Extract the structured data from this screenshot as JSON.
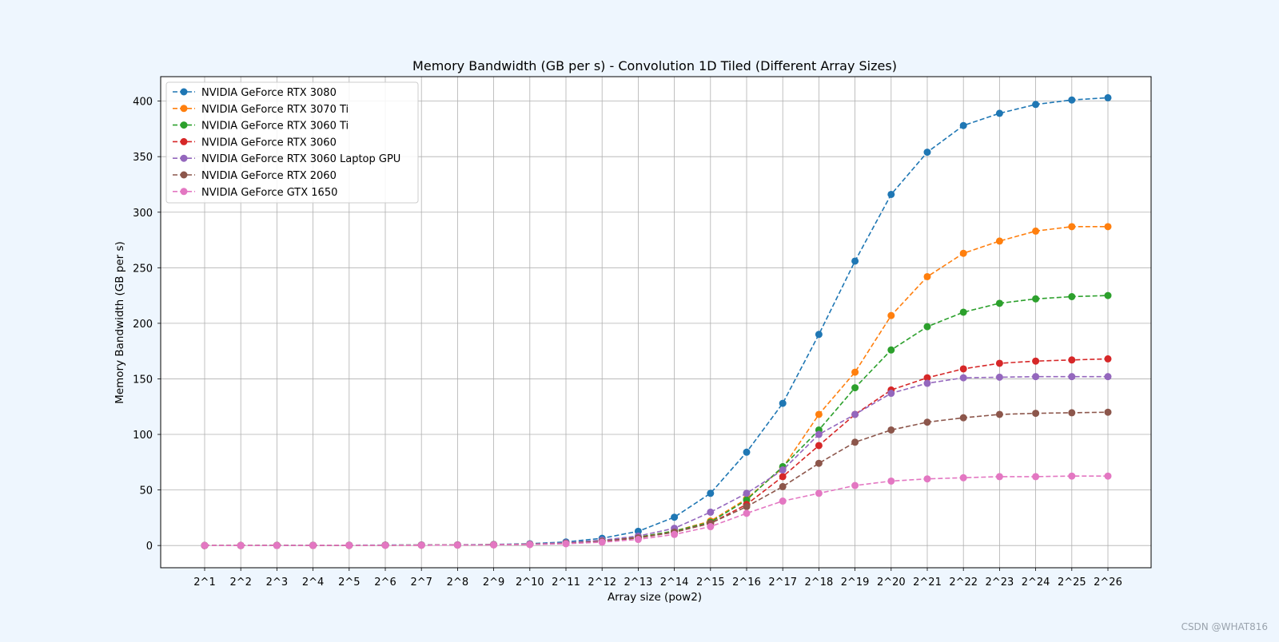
{
  "chart_data": {
    "type": "line",
    "title": "Memory Bandwidth (GB per s) - Convolution 1D Tiled (Different Array Sizes)",
    "xlabel": "Array size (pow2)",
    "ylabel": "Memory Bandwidth (GB per s)",
    "categories": [
      "2^1",
      "2^2",
      "2^3",
      "2^4",
      "2^5",
      "2^6",
      "2^7",
      "2^8",
      "2^9",
      "2^10",
      "2^11",
      "2^12",
      "2^13",
      "2^14",
      "2^15",
      "2^16",
      "2^17",
      "2^18",
      "2^19",
      "2^20",
      "2^21",
      "2^22",
      "2^23",
      "2^24",
      "2^25",
      "2^26"
    ],
    "ylim": [
      -20,
      422
    ],
    "yticks": [
      0,
      50,
      100,
      150,
      200,
      250,
      300,
      350,
      400
    ],
    "grid": true,
    "legend_position": "top-left",
    "line_style": "dashed",
    "marker": "circle",
    "series": [
      {
        "name": "NVIDIA GeForce RTX 3080",
        "color": "#1f77b4",
        "values": [
          0.0,
          0.0,
          0.1,
          0.2,
          0.3,
          0.4,
          0.5,
          0.6,
          0.9,
          1.6,
          3.2,
          6.5,
          12.8,
          25.5,
          47.0,
          84.0,
          128.0,
          190.0,
          256.0,
          316.0,
          354.0,
          378.0,
          389.0,
          397.0,
          401.0,
          403.0
        ]
      },
      {
        "name": "NVIDIA GeForce RTX 3070 Ti",
        "color": "#ff7f0e",
        "values": [
          0.0,
          0.0,
          0.1,
          0.2,
          0.2,
          0.3,
          0.4,
          0.5,
          0.8,
          1.2,
          2.2,
          4.2,
          7.5,
          13.0,
          22.0,
          42.0,
          70.0,
          118.0,
          156.0,
          207.0,
          242.0,
          263.0,
          274.0,
          283.0,
          287.0,
          287.0
        ]
      },
      {
        "name": "NVIDIA GeForce RTX 3060 Ti",
        "color": "#2ca02c",
        "values": [
          0.0,
          0.0,
          0.1,
          0.2,
          0.2,
          0.3,
          0.4,
          0.5,
          0.8,
          1.2,
          2.2,
          4.2,
          7.5,
          13.0,
          21.0,
          41.0,
          71.0,
          104.0,
          142.0,
          176.0,
          197.0,
          210.0,
          218.0,
          222.0,
          224.0,
          225.0
        ]
      },
      {
        "name": "NVIDIA GeForce RTX 3060",
        "color": "#d62728",
        "values": [
          0.0,
          0.0,
          0.1,
          0.1,
          0.2,
          0.3,
          0.3,
          0.5,
          0.7,
          1.1,
          2.0,
          4.0,
          7.0,
          12.0,
          20.0,
          37.0,
          62.0,
          90.0,
          118.0,
          140.0,
          151.0,
          159.0,
          164.0,
          166.0,
          167.0,
          168.0
        ]
      },
      {
        "name": "NVIDIA GeForce RTX 3060 Laptop GPU",
        "color": "#9467bd",
        "values": [
          0.0,
          0.0,
          0.1,
          0.2,
          0.2,
          0.3,
          0.4,
          0.5,
          0.8,
          1.3,
          2.5,
          4.8,
          8.5,
          15.5,
          30.0,
          47.0,
          68.0,
          100.0,
          118.0,
          137.0,
          146.0,
          151.0,
          151.5,
          152.0,
          152.0,
          152.0
        ]
      },
      {
        "name": "NVIDIA GeForce RTX 2060",
        "color": "#8c564b",
        "values": [
          0.0,
          0.0,
          0.1,
          0.1,
          0.2,
          0.3,
          0.3,
          0.4,
          0.7,
          1.0,
          2.0,
          3.8,
          6.8,
          12.0,
          20.0,
          35.0,
          53.0,
          74.0,
          93.0,
          104.0,
          111.0,
          115.0,
          118.0,
          119.0,
          119.5,
          120.0
        ]
      },
      {
        "name": "NVIDIA GeForce GTX 1650",
        "color": "#e377c2",
        "values": [
          0.0,
          0.0,
          0.0,
          0.1,
          0.2,
          0.2,
          0.3,
          0.4,
          0.6,
          0.9,
          1.6,
          3.0,
          5.5,
          10.0,
          17.0,
          29.0,
          40.0,
          47.0,
          54.0,
          58.0,
          60.0,
          61.0,
          62.0,
          62.0,
          62.5,
          62.5
        ]
      }
    ]
  },
  "watermark": "CSDN @WHAT816"
}
